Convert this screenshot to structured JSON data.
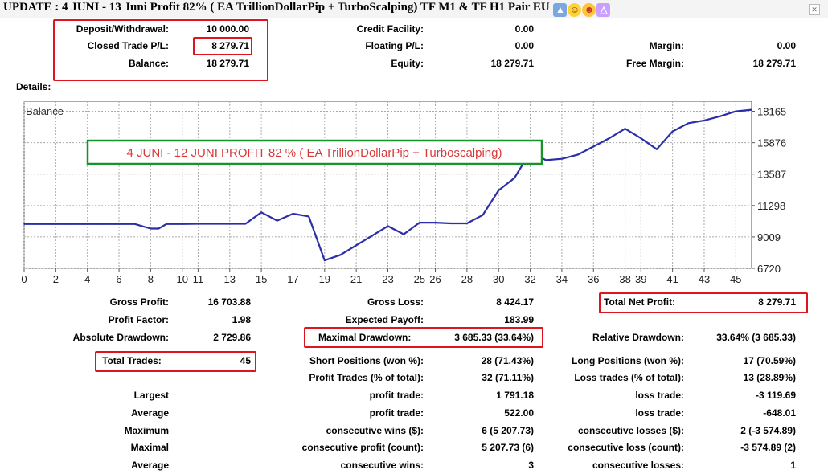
{
  "title": "UPDATE : 4 JUNI - 13 Juni Profit 82% ( EA TrillionDollarPip + TurboScalping) TF M1 & TF H1 Pair EU",
  "title_icons": [
    "thumbs-up-icon",
    "smiley-icon",
    "party-face-icon",
    "party-hat-icon"
  ],
  "summary": {
    "deposit_label": "Deposit/Withdrawal:",
    "deposit": "10 000.00",
    "closed_label": "Closed Trade P/L:",
    "closed": "8 279.71",
    "balance_label": "Balance:",
    "balance": "18 279.71",
    "credit_label": "Credit Facility:",
    "credit": "0.00",
    "floating_label": "Floating P/L:",
    "floating": "0.00",
    "equity_label": "Equity:",
    "equity": "18 279.71",
    "margin_label": "Margin:",
    "margin": "0.00",
    "free_margin_label": "Free Margin:",
    "free_margin": "18 279.71"
  },
  "details_label": "Details:",
  "chart_data": {
    "type": "line",
    "title": "Balance",
    "annotation": "4 JUNI - 12 JUNI  PROFIT 82 % ( EA TrillionDollarPip + Turboscalping)",
    "x": [
      0,
      1,
      2,
      3,
      4,
      5,
      6,
      7,
      8,
      8.5,
      9,
      10,
      11,
      12,
      13,
      14,
      15,
      16,
      17,
      18,
      19,
      20,
      21,
      22,
      23,
      24,
      25,
      26,
      27,
      28,
      29,
      30,
      31,
      32,
      33,
      34,
      35,
      36,
      37,
      38,
      39,
      40,
      41,
      42,
      43,
      44,
      45,
      46
    ],
    "values": [
      9950,
      9950,
      9950,
      9950,
      9950,
      9950,
      9950,
      9950,
      9620,
      9620,
      9950,
      9950,
      9970,
      9970,
      9970,
      9970,
      10800,
      10200,
      10700,
      10500,
      7300,
      7700,
      8400,
      9100,
      9800,
      9200,
      10050,
      10050,
      10000,
      10000,
      10600,
      12400,
      13300,
      15200,
      14600,
      14700,
      15000,
      15600,
      16200,
      16900,
      16200,
      15400,
      16700,
      17300,
      17500,
      17800,
      18165,
      18279.71
    ],
    "xticks": [
      0,
      2,
      4,
      6,
      8,
      10,
      11,
      13,
      15,
      17,
      19,
      21,
      23,
      25,
      26,
      28,
      30,
      32,
      34,
      36,
      38,
      39,
      41,
      43,
      45
    ],
    "yticks": [
      18165,
      15876,
      13587,
      11298,
      9009,
      6720
    ],
    "ylim": [
      6720,
      18900
    ],
    "xlim": [
      0,
      46
    ],
    "grid": true,
    "line_color": "#2b2ea8",
    "annotation_color": "#d83a3a",
    "annotation_box_color": "#18922a"
  },
  "stats": {
    "gross_profit_label": "Gross Profit:",
    "gross_profit": "16 703.88",
    "gross_loss_label": "Gross Loss:",
    "gross_loss": "8 424.17",
    "total_net_label": "Total Net Profit:",
    "total_net": "8 279.71",
    "profit_factor_label": "Profit Factor:",
    "profit_factor": "1.98",
    "expected_payoff_label": "Expected Payoff:",
    "expected_payoff": "183.99",
    "abs_dd_label": "Absolute Drawdown:",
    "abs_dd": "2 729.86",
    "max_dd_label": "Maximal Drawdown:",
    "max_dd": "3 685.33 (33.64%)",
    "rel_dd_label": "Relative Drawdown:",
    "rel_dd": "33.64% (3 685.33)",
    "total_trades_label": "Total Trades:",
    "total_trades": "45",
    "short_label": "Short Positions (won %):",
    "short": "28 (71.43%)",
    "long_label": "Long Positions (won %):",
    "long": "17 (70.59%)",
    "profit_trades_label": "Profit Trades (% of total):",
    "profit_trades": "32 (71.11%)",
    "loss_trades_label": "Loss trades (% of total):",
    "loss_trades": "13 (28.89%)"
  },
  "extremes": [
    {
      "name": "Largest",
      "a_label": "profit trade:",
      "a": "1 791.18",
      "b_label": "loss trade:",
      "b": "-3 119.69"
    },
    {
      "name": "Average",
      "a_label": "profit trade:",
      "a": "522.00",
      "b_label": "loss trade:",
      "b": "-648.01"
    },
    {
      "name": "Maximum",
      "a_label": "consecutive wins ($):",
      "a": "6 (5 207.73)",
      "b_label": "consecutive losses ($):",
      "b": "2 (-3 574.89)"
    },
    {
      "name": "Maximal",
      "a_label": "consecutive profit (count):",
      "a": "5 207.73 (6)",
      "b_label": "consecutive loss (count):",
      "b": "-3 574.89 (2)"
    },
    {
      "name": "Average",
      "a_label": "consecutive wins:",
      "a": "3",
      "b_label": "consecutive losses:",
      "b": "1"
    }
  ]
}
